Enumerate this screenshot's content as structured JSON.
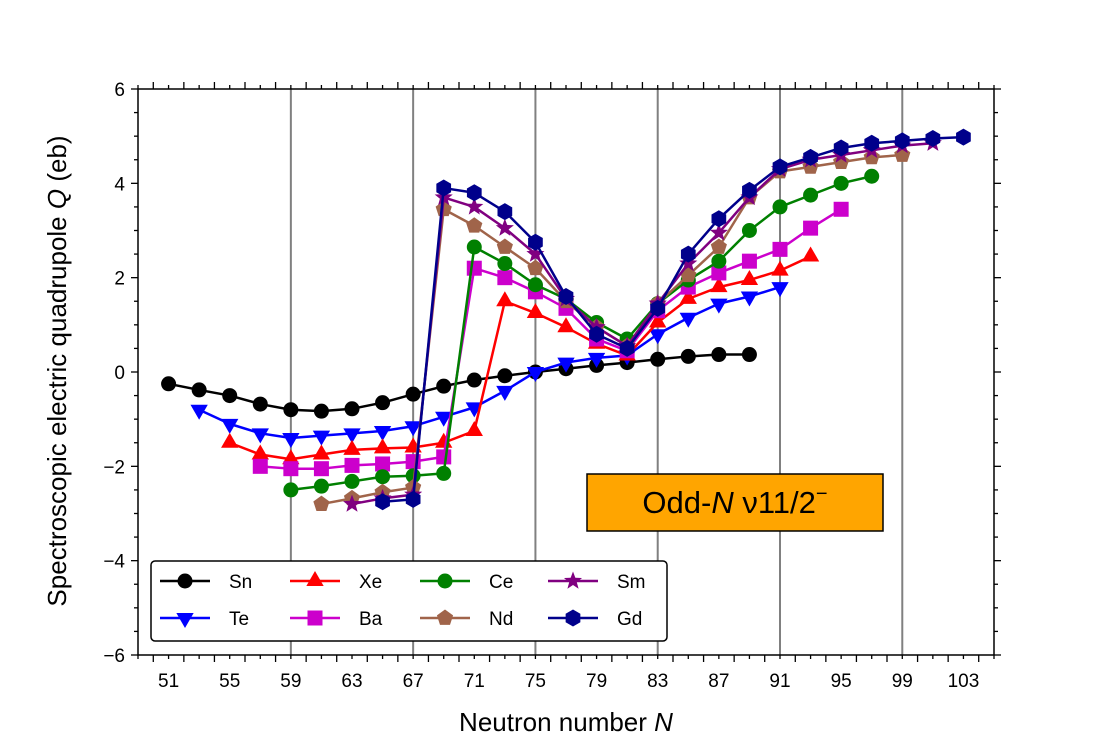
{
  "chart_data": {
    "type": "line",
    "xlabel_prefix": "Neutron number ",
    "xlabel_var": "N",
    "ylabel_prefix": "Spectroscopic electric quadrupole ",
    "ylabel_var": "Q",
    "ylabel_suffix": " (eb)",
    "xlim": [
      49,
      105
    ],
    "ylim": [
      -6,
      6
    ],
    "xticks": [
      51,
      55,
      59,
      63,
      67,
      71,
      75,
      79,
      83,
      87,
      91,
      95,
      99,
      103
    ],
    "yticks": [
      -6,
      -4,
      -2,
      0,
      2,
      4,
      6
    ],
    "ytick_labels": [
      "−6",
      "−4",
      "−2",
      "0",
      "2",
      "4",
      "6"
    ],
    "vertical_lines": [
      59,
      67,
      75,
      83,
      91,
      99
    ],
    "legend_position": "lower-left",
    "annotation": {
      "prefix": "Odd-",
      "var": "N",
      "middle": " ν11/2",
      "sup": "−",
      "background": "#ffa500"
    },
    "series": [
      {
        "name": "Sn",
        "color": "#000000",
        "marker": "circle",
        "x": [
          51,
          53,
          55,
          57,
          59,
          61,
          63,
          65,
          67,
          69,
          71,
          73,
          75,
          77,
          79,
          81,
          83,
          85,
          87,
          89
        ],
        "y": [
          -0.25,
          -0.38,
          -0.5,
          -0.68,
          -0.8,
          -0.83,
          -0.78,
          -0.65,
          -0.47,
          -0.3,
          -0.17,
          -0.08,
          0.0,
          0.07,
          0.14,
          0.2,
          0.27,
          0.33,
          0.37,
          0.37
        ]
      },
      {
        "name": "Te",
        "color": "#0000ff",
        "marker": "triangle-down",
        "x": [
          53,
          55,
          57,
          59,
          61,
          63,
          65,
          67,
          69,
          71,
          73,
          75,
          77,
          79,
          81,
          83,
          85,
          87,
          89,
          91
        ],
        "y": [
          -0.8,
          -1.1,
          -1.3,
          -1.4,
          -1.35,
          -1.3,
          -1.25,
          -1.15,
          -0.95,
          -0.75,
          -0.4,
          0.0,
          0.2,
          0.3,
          0.35,
          0.8,
          1.15,
          1.45,
          1.6,
          1.8
        ]
      },
      {
        "name": "Xe",
        "color": "#ff0000",
        "marker": "triangle-up",
        "x": [
          55,
          57,
          59,
          61,
          63,
          65,
          67,
          69,
          71,
          73,
          75,
          77,
          79,
          81,
          83,
          85,
          87,
          89,
          91,
          93
        ],
        "y": [
          -1.5,
          -1.75,
          -1.85,
          -1.75,
          -1.65,
          -1.62,
          -1.6,
          -1.5,
          -1.25,
          1.5,
          1.25,
          0.95,
          0.6,
          0.35,
          1.05,
          1.55,
          1.8,
          1.95,
          2.15,
          2.45
        ]
      },
      {
        "name": "Ba",
        "color": "#cc00cc",
        "marker": "square",
        "x": [
          57,
          59,
          61,
          63,
          65,
          67,
          69,
          71,
          73,
          75,
          77,
          79,
          81,
          83,
          85,
          87,
          89,
          91,
          93,
          95
        ],
        "y": [
          -2.0,
          -2.05,
          -2.05,
          -1.98,
          -1.95,
          -1.9,
          -1.8,
          2.2,
          2.0,
          1.7,
          1.35,
          0.7,
          0.45,
          1.3,
          1.8,
          2.1,
          2.35,
          2.6,
          3.05,
          3.45
        ]
      },
      {
        "name": "Ce",
        "color": "#008000",
        "marker": "circle",
        "x": [
          59,
          61,
          63,
          65,
          67,
          69,
          71,
          73,
          75,
          77,
          79,
          81,
          83,
          85,
          87,
          89,
          91,
          93,
          95,
          97
        ],
        "y": [
          -2.5,
          -2.42,
          -2.32,
          -2.22,
          -2.2,
          -2.15,
          2.65,
          2.3,
          1.85,
          1.55,
          1.05,
          0.7,
          1.45,
          1.95,
          2.35,
          3.0,
          3.5,
          3.75,
          4.0,
          4.15
        ]
      },
      {
        "name": "Nd",
        "color": "#a0644a",
        "marker": "pentagon",
        "x": [
          61,
          63,
          65,
          67,
          69,
          71,
          73,
          75,
          77,
          79,
          81,
          83,
          85,
          87,
          89,
          91,
          93,
          95,
          97,
          99
        ],
        "y": [
          -2.8,
          -2.68,
          -2.55,
          -2.45,
          3.45,
          3.1,
          2.65,
          2.2,
          1.5,
          0.95,
          0.55,
          1.45,
          2.05,
          2.65,
          3.7,
          4.25,
          4.35,
          4.45,
          4.55,
          4.6
        ]
      },
      {
        "name": "Sm",
        "color": "#800080",
        "marker": "star",
        "x": [
          63,
          65,
          67,
          69,
          71,
          73,
          75,
          77,
          79,
          81,
          83,
          85,
          87,
          89,
          91,
          93,
          95,
          97,
          99,
          101
        ],
        "y": [
          -2.8,
          -2.68,
          -2.6,
          3.7,
          3.5,
          3.05,
          2.5,
          1.55,
          0.95,
          0.55,
          1.45,
          2.3,
          2.95,
          3.7,
          4.3,
          4.5,
          4.6,
          4.7,
          4.8,
          4.85
        ]
      },
      {
        "name": "Gd",
        "color": "#00008b",
        "marker": "hexagon",
        "x": [
          65,
          67,
          69,
          71,
          73,
          75,
          77,
          79,
          81,
          83,
          85,
          87,
          89,
          91,
          93,
          95,
          97,
          99,
          101,
          103
        ],
        "y": [
          -2.75,
          -2.7,
          3.9,
          3.8,
          3.4,
          2.75,
          1.6,
          0.8,
          0.5,
          1.35,
          2.5,
          3.25,
          3.85,
          4.35,
          4.55,
          4.75,
          4.85,
          4.9,
          4.95,
          4.98
        ]
      }
    ]
  }
}
